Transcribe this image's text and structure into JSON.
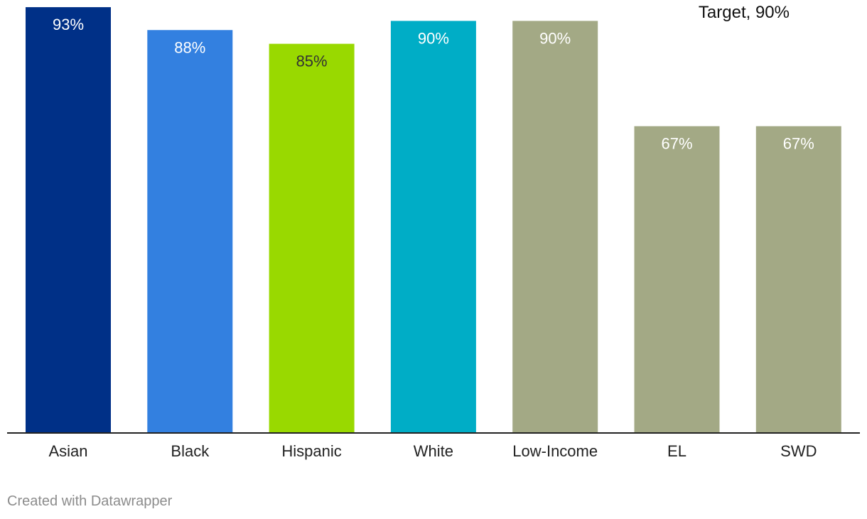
{
  "chart_data": {
    "type": "bar",
    "categories": [
      "Asian",
      "Black",
      "Hispanic",
      "White",
      "Low-Income",
      "EL",
      "SWD"
    ],
    "values": [
      93,
      88,
      85,
      90,
      90,
      67,
      67
    ],
    "value_labels": [
      "93%",
      "88%",
      "85%",
      "90%",
      "90%",
      "67%",
      "67%"
    ],
    "colors": [
      "#003087",
      "#3380e0",
      "#99d900",
      "#00adc6",
      "#a3a985",
      "#a3a985",
      "#a3a985"
    ],
    "ylim": [
      0,
      100
    ],
    "grid": false,
    "annotations": [
      {
        "text": "Target, 90%",
        "value": 90
      }
    ]
  },
  "credit": "Created with Datawrapper"
}
